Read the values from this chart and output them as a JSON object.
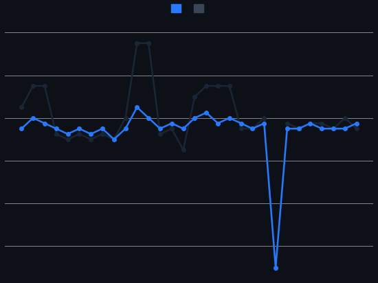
{
  "blue_series": [
    3,
    4,
    3.5,
    3,
    2.5,
    3,
    2.5,
    3,
    2,
    3,
    5,
    4,
    3,
    3.5,
    3,
    4,
    4.5,
    3.5,
    4,
    3.5,
    3,
    3.5,
    -10,
    3,
    3,
    3.5,
    3,
    3,
    3,
    3.5
  ],
  "black_series": [
    5,
    7,
    7,
    2.5,
    2,
    2.5,
    2,
    2.5,
    2,
    4,
    11,
    11,
    2.5,
    3,
    1,
    6,
    7,
    7,
    7,
    3,
    3,
    4,
    -10,
    3.5,
    3,
    3.5,
    3.5,
    3,
    4,
    3
  ],
  "blue_color": "#2979FF",
  "black_color": "#1a2535",
  "dark_legend_color": "#3a4555",
  "background_color": "#0d1117",
  "grid_color": "#ffffff",
  "ylim": [
    -11,
    13
  ],
  "yticks": [
    -8,
    -4,
    0,
    4,
    8,
    12
  ],
  "line_width": 1.8,
  "marker_size": 4
}
